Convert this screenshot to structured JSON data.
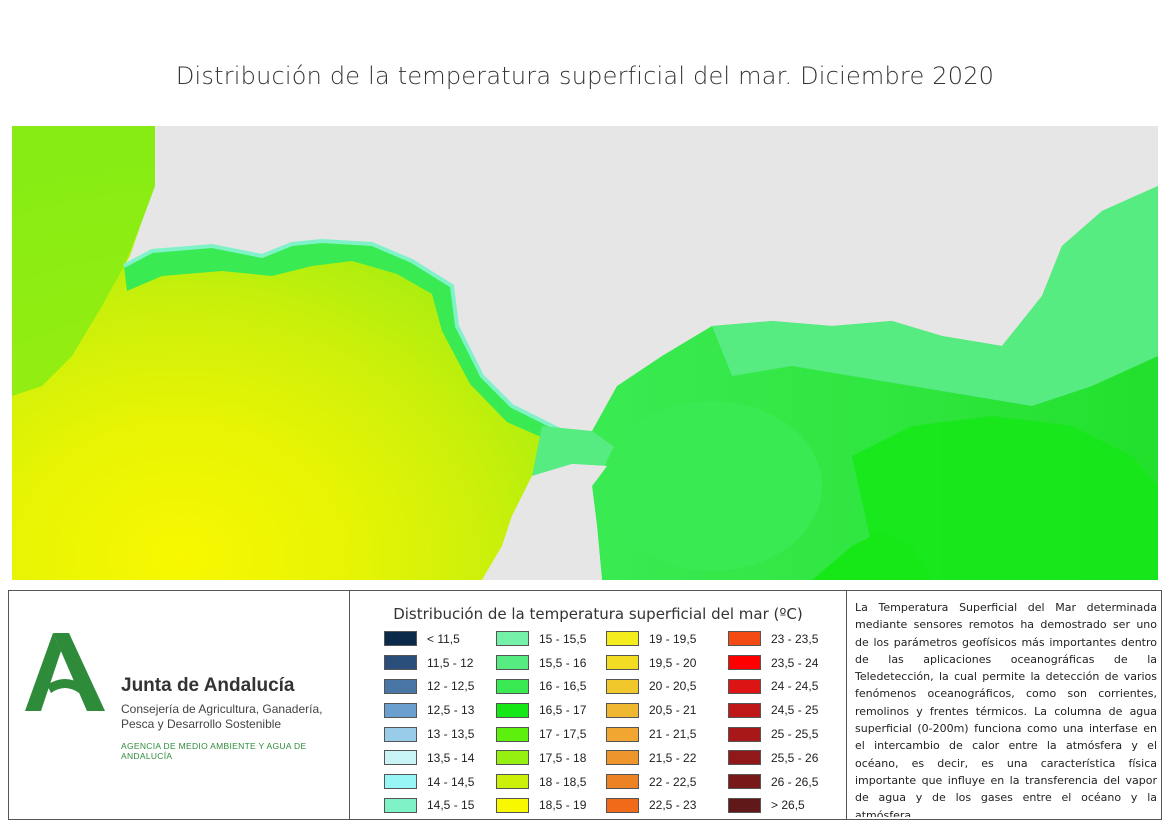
{
  "title": "Distribución de la temperatura superficial del mar. Diciembre 2020",
  "legend": {
    "title": "Distribución de la temperatura superficial del mar (ºC)",
    "items": [
      {
        "label": "< 11,5",
        "color": "#0b2a4a"
      },
      {
        "label": "11,5 - 12",
        "color": "#2a4f7a"
      },
      {
        "label": "12 - 12,5",
        "color": "#4a76a6"
      },
      {
        "label": "12,5 - 13",
        "color": "#6a9fcf"
      },
      {
        "label": "13 - 13,5",
        "color": "#99cce8"
      },
      {
        "label": "13,5 - 14",
        "color": "#c8f4f6"
      },
      {
        "label": "14 - 14,5",
        "color": "#99f6f6"
      },
      {
        "label": "14,5 - 15",
        "color": "#80f2c8"
      },
      {
        "label": "15 - 15,5",
        "color": "#74f0a8"
      },
      {
        "label": "15,5 - 16",
        "color": "#56ec82"
      },
      {
        "label": "16 - 16,5",
        "color": "#3aea52"
      },
      {
        "label": "16,5 - 17",
        "color": "#16e818"
      },
      {
        "label": "17 - 17,5",
        "color": "#5cf00c"
      },
      {
        "label": "17,5 - 18",
        "color": "#96f010"
      },
      {
        "label": "18 - 18,5",
        "color": "#cdf00a"
      },
      {
        "label": "18,5 - 19",
        "color": "#f8f800"
      },
      {
        "label": "19 - 19,5",
        "color": "#f4ec1c"
      },
      {
        "label": "19,5 - 20",
        "color": "#f2dc24"
      },
      {
        "label": "20 - 20,5",
        "color": "#f0c82c"
      },
      {
        "label": "20,5 - 21",
        "color": "#f0b830"
      },
      {
        "label": "21 - 21,5",
        "color": "#f0a630"
      },
      {
        "label": "21,5 - 22",
        "color": "#ee962c"
      },
      {
        "label": "22 - 22,5",
        "color": "#ec8224"
      },
      {
        "label": "22,5 - 23",
        "color": "#f06a1a"
      },
      {
        "label": "23 - 23,5",
        "color": "#f44a14"
      },
      {
        "label": "23,5 - 24",
        "color": "#ff0000"
      },
      {
        "label": "24 - 24,5",
        "color": "#dc1414"
      },
      {
        "label": "24,5 - 25",
        "color": "#c01818"
      },
      {
        "label": "25 - 25,5",
        "color": "#a81818"
      },
      {
        "label": "25,5 - 26",
        "color": "#901818"
      },
      {
        "label": "26 - 26,5",
        "color": "#781818"
      },
      {
        "label": "> 26,5",
        "color": "#601818"
      }
    ]
  },
  "logo": {
    "name": "Junta de Andalucía",
    "subtitle": "Consejería de Agricultura, Ganadería, Pesca y Desarrollo Sostenible",
    "agency": "AGENCIA DE MEDIO AMBIENTE Y AGUA DE ANDALUCÍA",
    "color": "#2e8b3a"
  },
  "info_text": "La Temperatura Superficial del Mar determinada mediante sensores remotos ha demostrado ser uno de los parámetros geofísicos más importantes dentro de las aplicaciones oceanográficas de la Teledetección, la cual permite la detección de varios fenómenos oceanográficos, como son corrientes, remolinos y frentes térmicos. La columna de agua superficial (0-200m) funciona como una interfase en el intercambio de calor entre la atmósfera y el océano, es decir, es una característica física importante que influye en la transferencia del vapor de agua y de los gases entre el océano y la atmósfera.",
  "map": {
    "land_color": "#e6e6e6"
  }
}
